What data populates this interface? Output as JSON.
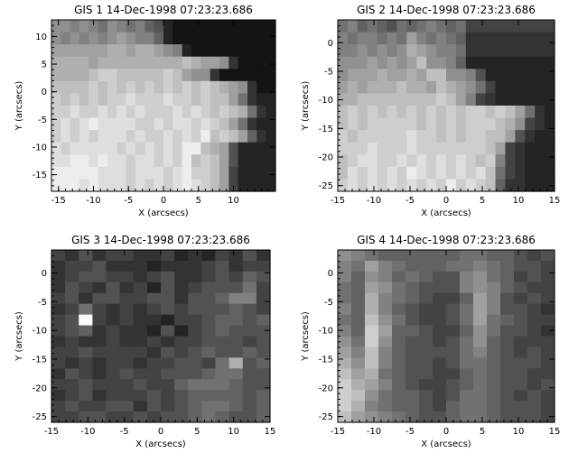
{
  "chart_data": [
    {
      "type": "heatmap",
      "title": "GIS 1 14-Dec-1998 07:23:23.686",
      "xlabel": "X (arcsecs)",
      "ylabel": "Y (arcsecs)",
      "xlim": [
        -16,
        16
      ],
      "ylim": [
        -18,
        13
      ],
      "xticks": [
        -15,
        -10,
        -5,
        0,
        5,
        10
      ],
      "yticks": [
        -15,
        -10,
        -5,
        0,
        5,
        10
      ],
      "colormap": "grayscale",
      "grid_rows_top_to_bottom": [
        "8a8a7a8a7a6a8a7a6a7a5a4a1a0a",
        "8a7a8a7a8a7a8a9a8a7a7a5a1a0a",
        "9a9a9a9a9a9aaa9aaa9a8a7a1a0a",
        "aaaa9aaaaaaaaaabaa9a9a8a2a0a",
        "aaaabacacbbbbbcaba9a8a8a2a0a",
        "bbbbcbcbcbcbcbcbcbaa9a8a2a0a",
        "cbcbcbccdcccdccbcbba9a6a2a1a",
        "ccdccdcdcdcccdcdcbcbaa6a2a1a",
        "cdcdeddddccdcddcdcba9a6a2a1a",
        "cdcdcdddcdccdcdcebcba9a5a2a1a",
        "dcdddddcdcdcdceebaa9a4a1a1a",
        "ddeededdcddcdcebcb9a4a1a1a",
        "eeeeedddcdddcdeccb9a3a1a1a",
        "eeededddcdcdcdedcb9a3a1a1a"
      ]
    },
    {
      "type": "heatmap",
      "title": "GIS 2 14-Dec-1998 07:23:23.686",
      "xlabel": "X (arcsecs)",
      "ylabel": "Y (arcsecs)",
      "xlim": [
        -15,
        15
      ],
      "ylim": [
        -26,
        4
      ],
      "xticks": [
        -15,
        -10,
        -5,
        0,
        5,
        10,
        15
      ],
      "yticks": [
        -25,
        -20,
        -15,
        -10,
        -5,
        0
      ],
      "colormap": "grayscale",
      "grid_rows_top_to_bottom": [
        "6a7a5a6a5a4a6a5a6a7a6a5a6a3a",
        "7a6a7a7a6a7a6a9a7a6a7a6a5a2a",
        "7a7a8a7a8a7a8aa9a8a7a7a6a2a",
        "8a8a8a9a8a9a8a9ab8a8a7a5a1a",
        "8a9a9a9aa9a9aa9bba8a8a7a4a1a",
        "9aa9aaaabaaa9abaa9a8a6a3a1a",
        "aabababbbbbabcaba9a7a3a2a1a",
        "bcbcbcbcbcbcbccbcba9a6a2a1a",
        "bcbcccccbcbcbcccbaa8a3a2a1a",
        "cbcccccdccbcbccbba9a4a2a1a",
        "cccdcccdcccccccba9a3a2a1a",
        "bcddccdcdcdcdcbca7a3a2a1a",
        "bdcdcdcedcdcdcdba6a3a2a1a",
        "cdcdcdcdcdcecdcba5a2a2a1a"
      ]
    },
    {
      "type": "heatmap",
      "title": "GIS 3 14-Dec-1998 07:23:23.686",
      "xlabel": "X (arcsecs)",
      "ylabel": "Y (arcsecs)",
      "xlim": [
        -15,
        15
      ],
      "ylim": [
        -26,
        4
      ],
      "xticks": [
        -15,
        -10,
        -5,
        0,
        5,
        10,
        15
      ],
      "yticks": [
        -25,
        -20,
        -15,
        -10,
        -5,
        0
      ],
      "colormap": "grayscale",
      "grid_rows_top_to_bottom": [
        "3242332231213242",
        "2334222122234233",
        "2344332342234354",
        "2432423142344463",
        "3424433442445773",
        "2363232343444543",
        "34f3232213345545",
        "3452322141345444",
        "2322322323344434",
        "3343333243454454",
        "3232332334436a45",
        "2432343344456644",
        "3343334335666544",
        "2342333434555545",
        "3433442434566545",
        "3344334344565445"
      ]
    },
    {
      "type": "heatmap",
      "title": "GIS 4 14-Dec-1998 07:23:23.686",
      "xlabel": "X (arcsecs)",
      "ylabel": "Y (arcsecs)",
      "xlim": [
        -15,
        15
      ],
      "ylim": [
        -26,
        4
      ],
      "xticks": [
        -15,
        -10,
        -5,
        0,
        5,
        10,
        15
      ],
      "yticks": [
        -25,
        -20,
        -15,
        -10,
        -5,
        0
      ],
      "colormap": "grayscale",
      "grid_rows_top_to_bottom": [
        "8765555556655434",
        "7697655566765443",
        "7587565447865343",
        "6598654447875433",
        "65a7654335974343",
        "75a7543346974432",
        "65b8643346965433",
        "75c9554335864432",
        "86c8544346854333",
        "97b7544446754343",
        "a8b7544346654443",
        "b9a6544335654433",
        "ca97543345654434",
        "cb86554346654343",
        "ca76554356654443",
        "b987654456654443"
      ]
    }
  ]
}
